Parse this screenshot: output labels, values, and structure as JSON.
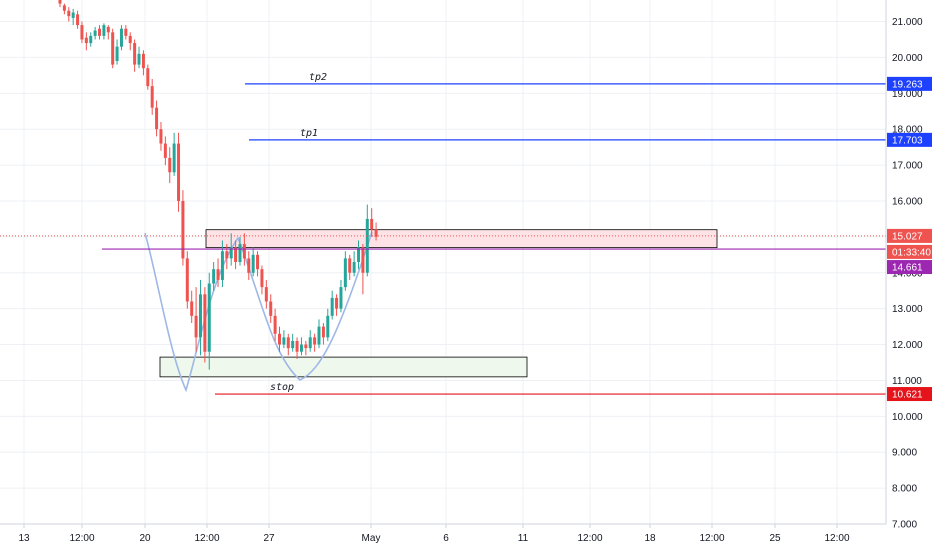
{
  "colors": {
    "up": "#26a69a",
    "down": "#ef5350",
    "grid": "#eef0f4",
    "axis_text": "#131722",
    "target_line": "#1e40ff",
    "stop_line": "#e5141b",
    "entry_line": "#9c27b0",
    "resistance_fill": "#fde3e6",
    "support_fill": "#eef8ec",
    "cup_curve": "#9fb8e6",
    "last_price_tag": "#ef5350"
  },
  "chart_data": {
    "type": "candlestick",
    "y_range": [
      7.0,
      21.6
    ],
    "y_ticks": [
      "21.000",
      "20.000",
      "19.000",
      "18.000",
      "17.000",
      "16.000",
      "15.000",
      "14.000",
      "13.000",
      "12.000",
      "11.000",
      "10.000",
      "9.000",
      "8.000",
      "7.000"
    ],
    "x_tick_labels": [
      "13",
      "12:00",
      "20",
      "12:00",
      "27",
      "May",
      "6",
      "11",
      "12:00",
      "18",
      "12:00",
      "25",
      "12:00"
    ],
    "levels": [
      {
        "name": "tp2",
        "label": "tp2",
        "value": 19.263,
        "tag": "19.263"
      },
      {
        "name": "tp1",
        "label": "tp1",
        "value": 17.703,
        "tag": "17.703"
      },
      {
        "name": "entry",
        "label": "",
        "value": 14.661,
        "tag": "14.661"
      },
      {
        "name": "stop",
        "label": "stop",
        "value": 10.621,
        "tag": "10.621"
      }
    ],
    "last_price": {
      "value": 15.027,
      "tag": "15.027",
      "countdown": "01:33:40"
    },
    "zones": [
      {
        "name": "resistance-zone",
        "y_low": 14.7,
        "y_high": 15.2
      },
      {
        "name": "support-zone",
        "y_low": 11.1,
        "y_high": 11.65
      }
    ],
    "candles": [
      [
        21.6,
        21.5,
        21.65,
        21.4
      ],
      [
        21.45,
        21.3,
        21.5,
        21.2
      ],
      [
        21.3,
        21.15,
        21.4,
        21.0
      ],
      [
        21.1,
        21.25,
        21.35,
        20.9
      ],
      [
        21.2,
        20.9,
        21.3,
        20.8
      ],
      [
        20.9,
        20.5,
        21.0,
        20.4
      ],
      [
        20.55,
        20.4,
        20.7,
        20.2
      ],
      [
        20.4,
        20.6,
        20.7,
        20.3
      ],
      [
        20.6,
        20.75,
        20.85,
        20.5
      ],
      [
        20.8,
        20.6,
        20.9,
        20.5
      ],
      [
        20.6,
        20.9,
        20.95,
        20.5
      ],
      [
        20.85,
        20.7,
        20.9,
        20.5
      ],
      [
        20.7,
        19.8,
        20.8,
        19.7
      ],
      [
        19.9,
        20.3,
        20.5,
        19.8
      ],
      [
        20.3,
        20.8,
        20.9,
        20.2
      ],
      [
        20.8,
        20.6,
        20.9,
        20.5
      ],
      [
        20.6,
        20.4,
        20.7,
        20.2
      ],
      [
        20.4,
        19.8,
        20.5,
        19.6
      ],
      [
        19.8,
        20.1,
        20.3,
        19.7
      ],
      [
        20.1,
        19.7,
        20.2,
        19.5
      ],
      [
        19.7,
        19.2,
        19.8,
        19.1
      ],
      [
        19.2,
        18.6,
        19.4,
        18.4
      ],
      [
        18.6,
        18.0,
        18.8,
        17.8
      ],
      [
        18.0,
        17.6,
        18.2,
        17.4
      ],
      [
        17.6,
        17.2,
        17.8,
        17.0
      ],
      [
        17.2,
        16.8,
        17.5,
        16.5
      ],
      [
        16.8,
        17.6,
        17.9,
        16.7
      ],
      [
        17.6,
        16.0,
        17.9,
        15.7
      ],
      [
        16.0,
        14.4,
        16.3,
        14.2
      ],
      [
        14.4,
        13.2,
        14.6,
        13.0
      ],
      [
        13.2,
        12.8,
        13.5,
        12.6
      ],
      [
        12.8,
        12.2,
        13.6,
        11.8
      ],
      [
        12.2,
        13.4,
        13.8,
        11.7
      ],
      [
        13.4,
        11.8,
        13.6,
        11.5
      ],
      [
        11.8,
        13.7,
        14.0,
        11.3
      ],
      [
        13.7,
        14.1,
        14.3,
        13.5
      ],
      [
        14.1,
        13.8,
        14.4,
        13.6
      ],
      [
        13.8,
        14.6,
        14.9,
        13.6
      ],
      [
        14.6,
        14.4,
        14.8,
        14.1
      ],
      [
        14.4,
        14.7,
        15.1,
        14.2
      ],
      [
        14.7,
        14.3,
        14.9,
        14.1
      ],
      [
        14.3,
        14.8,
        15.0,
        14.2
      ],
      [
        14.8,
        14.4,
        15.1,
        14.2
      ],
      [
        14.4,
        14.0,
        14.6,
        13.8
      ],
      [
        14.0,
        14.5,
        14.7,
        13.9
      ],
      [
        14.5,
        14.1,
        14.6,
        13.9
      ],
      [
        14.1,
        13.6,
        14.2,
        13.4
      ],
      [
        13.6,
        13.2,
        13.8,
        13.0
      ],
      [
        13.2,
        12.8,
        13.4,
        12.6
      ],
      [
        12.8,
        12.3,
        13.0,
        12.1
      ],
      [
        12.3,
        12.0,
        12.5,
        11.8
      ],
      [
        12.0,
        12.2,
        12.4,
        11.9
      ],
      [
        12.2,
        11.9,
        12.3,
        11.7
      ],
      [
        11.9,
        12.1,
        12.3,
        11.8
      ],
      [
        12.1,
        11.8,
        12.2,
        11.6
      ],
      [
        11.8,
        12.0,
        12.2,
        11.7
      ],
      [
        12.0,
        11.9,
        12.1,
        11.7
      ],
      [
        11.9,
        12.2,
        12.4,
        11.8
      ],
      [
        12.2,
        12.0,
        12.3,
        11.8
      ],
      [
        12.0,
        12.5,
        12.7,
        11.9
      ],
      [
        12.5,
        12.2,
        12.6,
        12.0
      ],
      [
        12.2,
        12.8,
        13.0,
        12.1
      ],
      [
        12.8,
        13.3,
        13.5,
        12.7
      ],
      [
        13.3,
        13.0,
        13.4,
        12.8
      ],
      [
        13.0,
        13.6,
        13.8,
        12.9
      ],
      [
        13.6,
        14.4,
        14.6,
        13.5
      ],
      [
        14.4,
        14.0,
        14.5,
        13.8
      ],
      [
        14.0,
        14.3,
        14.6,
        13.9
      ],
      [
        14.3,
        14.7,
        14.9,
        14.1
      ],
      [
        14.7,
        14.0,
        14.8,
        13.4
      ],
      [
        14.0,
        15.5,
        15.9,
        13.9
      ],
      [
        15.5,
        15.2,
        15.8,
        15.0
      ],
      [
        15.2,
        15.0,
        15.4,
        14.9
      ]
    ]
  }
}
